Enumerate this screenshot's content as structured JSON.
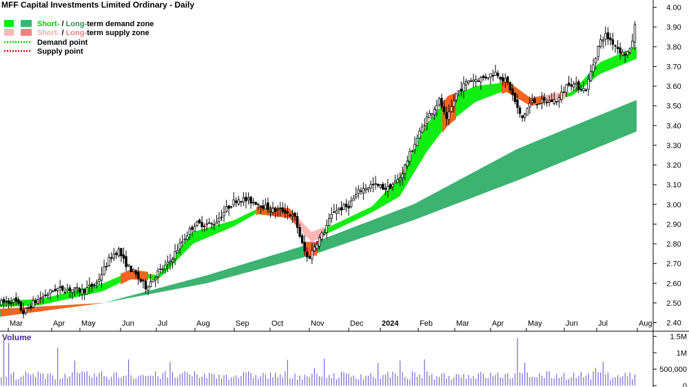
{
  "chart_data": {
    "type": "candlestick",
    "title": "MFF Capital Investments Limited Ordinary - Daily",
    "y_axis": {
      "ticks": [
        2.4,
        2.5,
        2.6,
        2.7,
        2.8,
        2.9,
        3.0,
        3.1,
        3.2,
        3.3,
        3.4,
        3.5,
        3.6,
        3.7,
        3.8,
        3.9,
        4.0
      ],
      "range": [
        2.36,
        4.03
      ]
    },
    "x_axis": {
      "months": [
        "Mar",
        "Apr",
        "May",
        "Jun",
        "Jul",
        "Aug",
        "Sep",
        "Oct",
        "Nov",
        "Dec",
        "2024",
        "Feb",
        "Mar",
        "Apr",
        "May",
        "Jun",
        "Jul",
        "Aug"
      ]
    },
    "legend": [
      {
        "part1": "Short-",
        "sep": " / ",
        "part2": "Long-",
        "rest": "term demand zone",
        "c1": "#00ee00",
        "c2": "#3cb371",
        "t1": "#00cc00",
        "t2": "#2e8b57"
      },
      {
        "part1": "Short-",
        "sep": " / ",
        "part2": "Long-",
        "rest": "term supply zone",
        "c1": "#ffb6b6",
        "c2": "#f08080",
        "t1": "#ffaaaa",
        "t2": "#f08080"
      },
      {
        "label": "Demand point",
        "color": "#00cc00"
      },
      {
        "label": "Supply point",
        "color": "#cc0000"
      }
    ],
    "price_anchors": [
      [
        0,
        2.5
      ],
      [
        22,
        2.51
      ],
      [
        34,
        2.45
      ],
      [
        48,
        2.5
      ],
      [
        80,
        2.57
      ],
      [
        100,
        2.57
      ],
      [
        120,
        2.56
      ],
      [
        140,
        2.6
      ],
      [
        160,
        2.73
      ],
      [
        172,
        2.77
      ],
      [
        180,
        2.71
      ],
      [
        195,
        2.65
      ],
      [
        212,
        2.58
      ],
      [
        228,
        2.65
      ],
      [
        245,
        2.7
      ],
      [
        262,
        2.8
      ],
      [
        282,
        2.9
      ],
      [
        310,
        2.9
      ],
      [
        332,
        2.99
      ],
      [
        345,
        3.03
      ],
      [
        372,
        3.01
      ],
      [
        395,
        2.97
      ],
      [
        412,
        2.97
      ],
      [
        428,
        2.93
      ],
      [
        440,
        2.78
      ],
      [
        447,
        2.72
      ],
      [
        458,
        2.8
      ],
      [
        470,
        2.86
      ],
      [
        485,
        2.97
      ],
      [
        505,
        2.99
      ],
      [
        522,
        3.07
      ],
      [
        540,
        3.1
      ],
      [
        562,
        3.08
      ],
      [
        580,
        3.13
      ],
      [
        598,
        3.28
      ],
      [
        618,
        3.43
      ],
      [
        638,
        3.53
      ],
      [
        648,
        3.42
      ],
      [
        662,
        3.56
      ],
      [
        680,
        3.63
      ],
      [
        700,
        3.64
      ],
      [
        720,
        3.67
      ],
      [
        738,
        3.61
      ],
      [
        757,
        3.43
      ],
      [
        770,
        3.52
      ],
      [
        790,
        3.52
      ],
      [
        810,
        3.53
      ],
      [
        825,
        3.62
      ],
      [
        850,
        3.58
      ],
      [
        870,
        3.82
      ],
      [
        878,
        3.86
      ],
      [
        890,
        3.82
      ],
      [
        905,
        3.76
      ],
      [
        915,
        3.78
      ],
      [
        924,
        3.95
      ]
    ],
    "long_term_zone": {
      "upper": [
        [
          0,
          2.47
        ],
        [
          150,
          2.5
        ],
        [
          300,
          2.64
        ],
        [
          450,
          2.8
        ],
        [
          600,
          3.0
        ],
        [
          750,
          3.28
        ],
        [
          924,
          3.53
        ]
      ],
      "lower": [
        [
          0,
          2.43
        ],
        [
          150,
          2.5
        ],
        [
          300,
          2.6
        ],
        [
          450,
          2.74
        ],
        [
          600,
          2.92
        ],
        [
          750,
          3.12
        ],
        [
          924,
          3.37
        ]
      ]
    },
    "short_term_zone": {
      "upper": [
        [
          0,
          2.51
        ],
        [
          60,
          2.52
        ],
        [
          150,
          2.6
        ],
        [
          190,
          2.66
        ],
        [
          230,
          2.64
        ],
        [
          280,
          2.86
        ],
        [
          340,
          2.92
        ],
        [
          375,
          2.98
        ],
        [
          420,
          2.97
        ],
        [
          452,
          2.85
        ],
        [
          480,
          2.89
        ],
        [
          540,
          2.99
        ],
        [
          580,
          3.14
        ],
        [
          620,
          3.41
        ],
        [
          650,
          3.54
        ],
        [
          690,
          3.6
        ],
        [
          735,
          3.62
        ],
        [
          770,
          3.53
        ],
        [
          830,
          3.57
        ],
        [
          870,
          3.72
        ],
        [
          924,
          3.8
        ]
      ],
      "lower": [
        [
          0,
          2.48
        ],
        [
          60,
          2.49
        ],
        [
          150,
          2.56
        ],
        [
          190,
          2.63
        ],
        [
          230,
          2.62
        ],
        [
          280,
          2.8
        ],
        [
          340,
          2.89
        ],
        [
          375,
          2.96
        ],
        [
          420,
          2.94
        ],
        [
          452,
          2.82
        ],
        [
          480,
          2.86
        ],
        [
          540,
          2.96
        ],
        [
          580,
          3.04
        ],
        [
          620,
          3.27
        ],
        [
          650,
          3.41
        ],
        [
          690,
          3.52
        ],
        [
          735,
          3.58
        ],
        [
          770,
          3.51
        ],
        [
          830,
          3.55
        ],
        [
          870,
          3.66
        ],
        [
          924,
          3.74
        ]
      ]
    },
    "volume_panel": {
      "label": "Volume",
      "ticks": [
        {
          "label": "1.5M",
          "value": 1500000
        },
        {
          "label": "1M",
          "value": 1000000
        },
        {
          "label": "500,000",
          "value": 500000
        },
        {
          "label": "0",
          "value": 0
        }
      ],
      "max": 1550000,
      "spikes": [
        {
          "x": 6,
          "value": 1400000
        },
        {
          "x": 12,
          "value": 1300000
        },
        {
          "x": 82,
          "value": 1150000
        },
        {
          "x": 186,
          "value": 800000
        },
        {
          "x": 750,
          "value": 1450000
        },
        {
          "x": 760,
          "value": 700000
        }
      ]
    }
  }
}
